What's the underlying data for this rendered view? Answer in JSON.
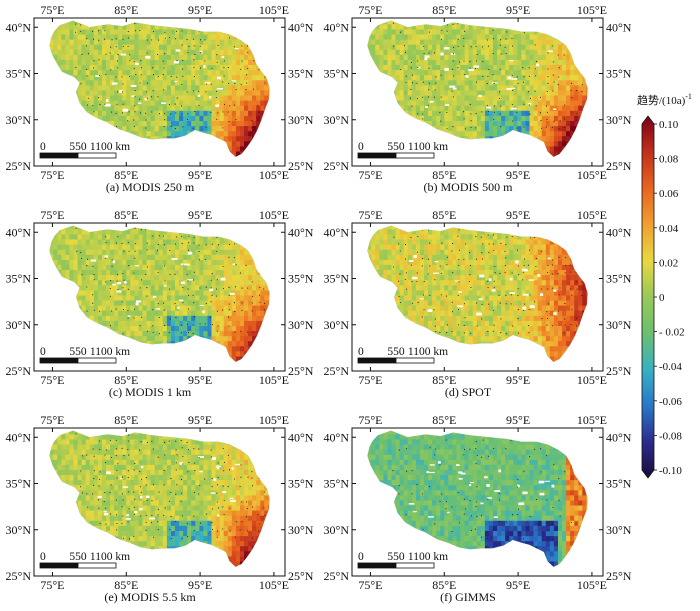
{
  "figure": {
    "panels": [
      {
        "caption": "(a) MODIS 250 m",
        "pattern": "modis250"
      },
      {
        "caption": "(b) MODIS 500 m",
        "pattern": "modis500"
      },
      {
        "caption": "(c) MODIS 1 km",
        "pattern": "modis1k"
      },
      {
        "caption": "(d) SPOT",
        "pattern": "spot"
      },
      {
        "caption": "(e) MODIS 5.5 km",
        "pattern": "modis55"
      },
      {
        "caption": "(f) GIMMS",
        "pattern": "gimms"
      }
    ],
    "lon_ticks": [
      "75°E",
      "85°E",
      "95°E",
      "105°E"
    ],
    "lat_ticks": [
      "40°N",
      "35°N",
      "30°N",
      "25°N"
    ],
    "scale_bar": {
      "labels": [
        "0",
        "550",
        "1100 km"
      ]
    },
    "colorbar": {
      "title": "趋势/(10a)",
      "title_sup": "-1",
      "ticks": [
        "0.10",
        "0.08",
        "0.06",
        "0.04",
        "0.02",
        "0",
        "- 0.02",
        "-0.04",
        "-0.06",
        "-0.08",
        "-0.10"
      ],
      "colors": [
        "#7a0018",
        "#c0301e",
        "#e8641e",
        "#f0a030",
        "#e8d840",
        "#98c858",
        "#6cc070",
        "#38b0c0",
        "#2878c8",
        "#2a2c8c",
        "#1a0a3a"
      ]
    }
  }
}
